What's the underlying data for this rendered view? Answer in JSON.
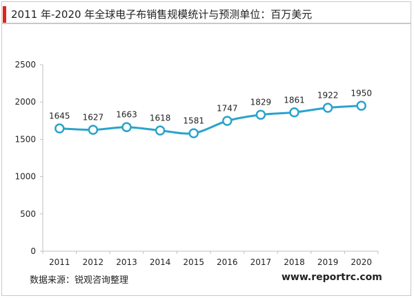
{
  "title": "2011 年-2020 年全球电子布销售规模统计与预测单位：百万美元",
  "source": "数据来源：锐观咨询整理",
  "brand": "www.reportrc.com",
  "colors": {
    "accent": "#e2231a",
    "line": "#29a3cc",
    "marker_fill": "#ffffff"
  },
  "chart_data": {
    "type": "line",
    "title": "2011 年-2020 年全球电子布销售规模统计与预测单位：百万美元",
    "xlabel": "",
    "ylabel": "",
    "categories": [
      "2011",
      "2012",
      "2013",
      "2014",
      "2015",
      "2016",
      "2017",
      "2018",
      "2019",
      "2020"
    ],
    "values": [
      1645,
      1627,
      1663,
      1618,
      1581,
      1747,
      1829,
      1861,
      1922,
      1950
    ],
    "data_labels": [
      "1645",
      "1627",
      "1663",
      "1618",
      "1581",
      "1747",
      "1829",
      "1861",
      "1922",
      "1950"
    ],
    "ylim": [
      0,
      2500
    ],
    "yticks": [
      "0",
      "500",
      "1000",
      "1500",
      "2000",
      "2500"
    ],
    "ytick_values": [
      0,
      500,
      1000,
      1500,
      2000,
      2500
    ],
    "grid": false,
    "legend": "none",
    "smooth": true
  }
}
